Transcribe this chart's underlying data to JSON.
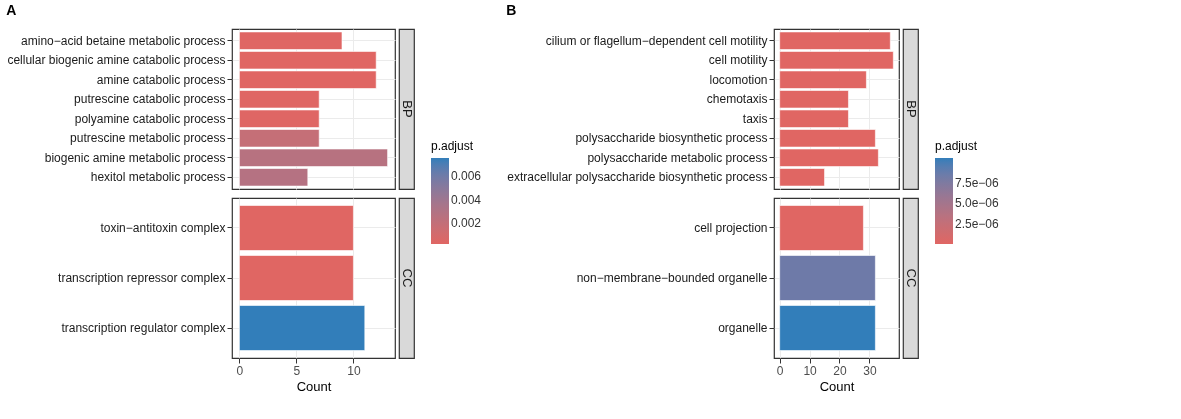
{
  "chart_data": [
    {
      "type": "bar",
      "orientation": "horizontal",
      "title": "A",
      "annotations": [
        "BP"
      ],
      "categories": [
        "amino−acid betaine metabolic process",
        "cellular biogenic amine catabolic process",
        "amine catabolic process",
        "putrescine catabolic process",
        "polyamine catabolic process",
        "putrescine metabolic process",
        "biogenic amine metabolic process",
        "hexitol metabolic process"
      ],
      "values": [
        9,
        12,
        12,
        7,
        7,
        7,
        13,
        6
      ],
      "cvalues": [
        0.0003,
        0.00025,
        0.00025,
        0.0003,
        0.0003,
        0.0019,
        0.0027,
        0.0028
      ],
      "xlim": [
        -0.65,
        13.65
      ],
      "xticks": [
        0,
        5,
        10
      ],
      "grid": true,
      "tick_labels": "y",
      "clabel": "p.adjust",
      "clim": [
        0.00025,
        0.0075
      ],
      "cticks": [
        0.002,
        0.004,
        0.006
      ]
    },
    {
      "type": "bar",
      "orientation": "horizontal",
      "xlabel": "Count",
      "annotations": [
        "CC"
      ],
      "categories": [
        "toxin−antitoxin complex",
        "transcription repressor complex",
        "transcription regulator complex"
      ],
      "values": [
        10,
        10,
        11
      ],
      "colors": [
        "#e06663",
        "#e06663",
        "#327eba"
      ],
      "xlim": [
        -0.65,
        13.65
      ],
      "xticks": [
        0,
        5,
        10
      ],
      "grid": true
    },
    {
      "type": "bar",
      "orientation": "horizontal",
      "title": "B",
      "annotations": [
        "BP"
      ],
      "categories": [
        "cilium or flagellum−dependent cell motility",
        "cell motility",
        "locomotion",
        "chemotaxis",
        "taxis",
        "polysaccharide biosynthetic process",
        "polysaccharide metabolic process",
        "extracellular polysaccharide biosynthetic process"
      ],
      "values": [
        37,
        38,
        29,
        23,
        23,
        32,
        33,
        15
      ],
      "cvalues": [
        0,
        0,
        0,
        0,
        0,
        0,
        0,
        0
      ],
      "xlim": [
        -1.9,
        39.9
      ],
      "xticks": [
        0,
        10,
        20,
        30
      ],
      "grid": true,
      "tick_labels": "y",
      "clabel": "p.adjust",
      "clim": [
        0,
        1.06e-05
      ],
      "cticks": [
        {
          "value": 2.5e-06,
          "label": "2.5e−06"
        },
        {
          "value": 5e-06,
          "label": "5.0e−06"
        },
        {
          "value": 7.5e-06,
          "label": "7.5e−06"
        }
      ]
    },
    {
      "type": "bar",
      "orientation": "horizontal",
      "xlabel": "Count",
      "annotations": [
        "CC"
      ],
      "categories": [
        "cell projection",
        "non−membrane−bounded organelle",
        "organelle"
      ],
      "values": [
        28,
        32,
        32
      ],
      "colors": [
        "#e06663",
        "#6e7aa8",
        "#327eba"
      ],
      "xlim": [
        -1.9,
        39.9
      ],
      "xticks": [
        0,
        10,
        20,
        30
      ],
      "grid": true
    }
  ]
}
